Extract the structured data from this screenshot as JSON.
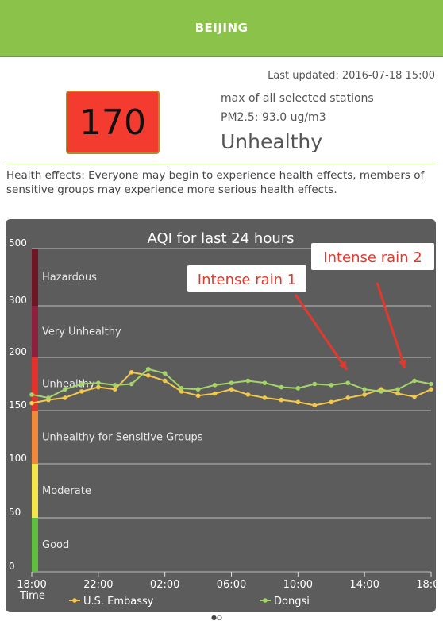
{
  "header": {
    "city": "BEIJING"
  },
  "summary": {
    "last_updated": "Last updated: 2016-07-18 15:00",
    "aqi_value": "170",
    "aqi_color": "#f33b2f",
    "station_note": "max of all selected stations",
    "pm25": "PM2.5: 93.0 ug/m3",
    "category": "Unhealthy"
  },
  "health": {
    "text": "Health effects: Everyone may begin to experience health effects, members of sensitive groups may experience more serious health effects."
  },
  "chart_data": {
    "type": "line",
    "title": "AQI for last 24 hours",
    "xlabel": "Time",
    "ylabel": "",
    "x_ticks": [
      "18:00",
      "22:00",
      "02:00",
      "06:00",
      "10:00",
      "14:00",
      "18:00"
    ],
    "y_ticks": [
      0,
      50,
      100,
      150,
      200,
      300,
      500
    ],
    "y_tick_labels": [
      "0",
      "50",
      "100",
      "150",
      "200",
      "300",
      "500"
    ],
    "bands": [
      {
        "name": "Good",
        "from": 0,
        "to": 50,
        "color": "#5fbf3c"
      },
      {
        "name": "Moderate",
        "from": 50,
        "to": 100,
        "color": "#f2e64a"
      },
      {
        "name": "Unhealthy for Sensitive Groups",
        "from": 100,
        "to": 150,
        "color": "#f08a3a"
      },
      {
        "name": "Unhealthy",
        "from": 150,
        "to": 200,
        "color": "#e3322b"
      },
      {
        "name": "Very Unhealthy",
        "from": 200,
        "to": 300,
        "color": "#8e1f3f"
      },
      {
        "name": "Hazardous",
        "from": 300,
        "to": 500,
        "color": "#6e1526"
      }
    ],
    "grid": true,
    "legend_position": "bottom",
    "series": [
      {
        "name": "U.S. Embassy",
        "color": "#f2c94c",
        "hours": [
          0,
          1,
          2,
          3,
          4,
          5,
          6,
          7,
          8,
          9,
          10,
          11,
          12,
          13,
          14,
          15,
          16,
          17,
          18,
          19,
          20,
          21,
          22,
          23,
          24
        ],
        "values": [
          157,
          160,
          162,
          168,
          172,
          170,
          186,
          183,
          178,
          168,
          164,
          166,
          170,
          165,
          162,
          160,
          158,
          155,
          158,
          162,
          165,
          170,
          166,
          163,
          170
        ]
      },
      {
        "name": "Dongsi",
        "color": "#a5d46a",
        "hours": [
          0,
          1,
          2,
          3,
          4,
          5,
          6,
          7,
          8,
          9,
          10,
          11,
          12,
          13,
          14,
          15,
          16,
          17,
          18,
          19,
          20,
          21,
          22,
          23,
          24
        ],
        "values": [
          165,
          162,
          170,
          175,
          176,
          174,
          175,
          189,
          185,
          171,
          170,
          174,
          176,
          178,
          176,
          172,
          171,
          175,
          174,
          176,
          170,
          168,
          170,
          178,
          175
        ]
      }
    ],
    "annotations": [
      {
        "text": "Intense rain 1",
        "color": "#e03a2f"
      },
      {
        "text": "Intense rain 2",
        "color": "#e03a2f"
      }
    ]
  }
}
